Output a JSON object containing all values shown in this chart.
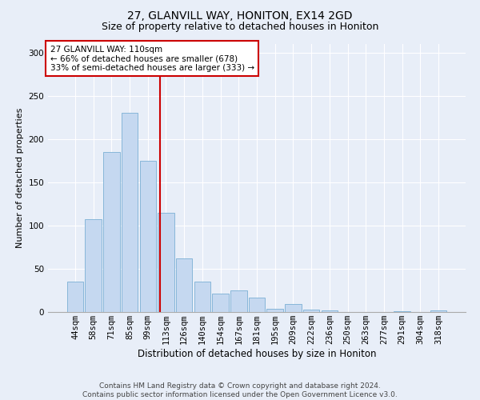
{
  "title": "27, GLANVILL WAY, HONITON, EX14 2GD",
  "subtitle": "Size of property relative to detached houses in Honiton",
  "xlabel": "Distribution of detached houses by size in Honiton",
  "ylabel": "Number of detached properties",
  "categories": [
    "44sqm",
    "58sqm",
    "71sqm",
    "85sqm",
    "99sqm",
    "113sqm",
    "126sqm",
    "140sqm",
    "154sqm",
    "167sqm",
    "181sqm",
    "195sqm",
    "209sqm",
    "222sqm",
    "236sqm",
    "250sqm",
    "263sqm",
    "277sqm",
    "291sqm",
    "304sqm",
    "318sqm"
  ],
  "values": [
    35,
    107,
    185,
    230,
    175,
    115,
    62,
    35,
    21,
    25,
    17,
    4,
    9,
    3,
    2,
    0,
    0,
    0,
    1,
    0,
    2
  ],
  "bar_color": "#c5d8f0",
  "bar_edge_color": "#7aafd4",
  "annotation_text": "27 GLANVILL WAY: 110sqm\n← 66% of detached houses are smaller (678)\n33% of semi-detached houses are larger (333) →",
  "annotation_box_color": "#ffffff",
  "annotation_box_edge": "#cc0000",
  "vline_color": "#cc0000",
  "vline_x": 4.67,
  "ylim": [
    0,
    310
  ],
  "yticks": [
    0,
    50,
    100,
    150,
    200,
    250,
    300
  ],
  "background_color": "#e8eef8",
  "grid_color": "#ffffff",
  "footer": "Contains HM Land Registry data © Crown copyright and database right 2024.\nContains public sector information licensed under the Open Government Licence v3.0.",
  "title_fontsize": 10,
  "subtitle_fontsize": 9,
  "xlabel_fontsize": 8.5,
  "ylabel_fontsize": 8,
  "tick_fontsize": 7.5,
  "footer_fontsize": 6.5
}
